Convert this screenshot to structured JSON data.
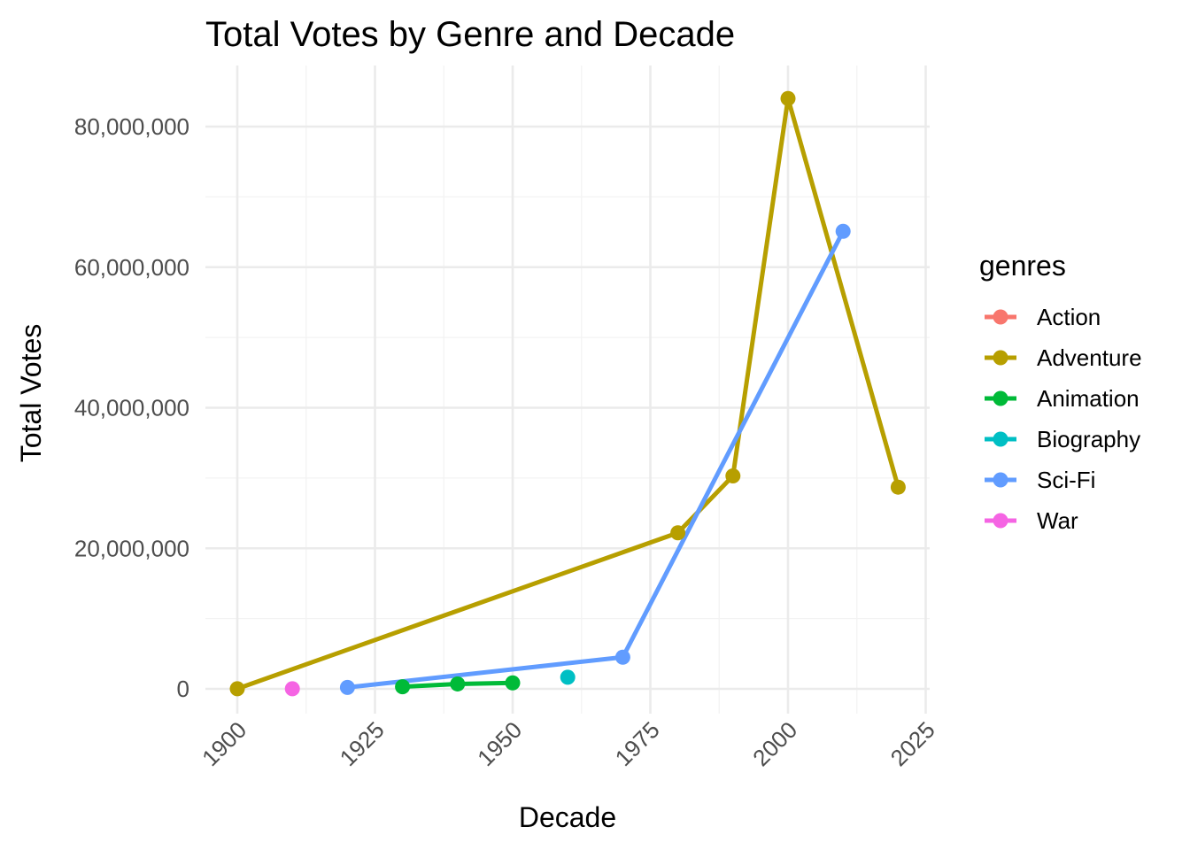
{
  "chart_data": {
    "type": "line",
    "title": "Total Votes by Genre and Decade",
    "xlabel": "Decade",
    "ylabel": "Total Votes",
    "xlim": [
      1900,
      2025
    ],
    "ylim": [
      0,
      85000000
    ],
    "x_ticks": [
      1900,
      1925,
      1950,
      1975,
      2000,
      2025
    ],
    "x_tick_labels": [
      "1900",
      "1925",
      "1950",
      "1975",
      "2000",
      "2025"
    ],
    "y_ticks": [
      0,
      20000000,
      40000000,
      60000000,
      80000000
    ],
    "y_tick_labels": [
      "0",
      "20,000,000",
      "40,000,000",
      "60,000,000",
      "80,000,000"
    ],
    "grid": true,
    "legend": {
      "title": "genres",
      "placement": "right"
    },
    "series": [
      {
        "name": "Action",
        "color": "#F8766D",
        "points": []
      },
      {
        "name": "Adventure",
        "color": "#B79F00",
        "points": [
          [
            1900,
            20000
          ],
          [
            1980,
            22200000
          ],
          [
            1990,
            30300000
          ],
          [
            2000,
            84000000
          ],
          [
            2020,
            28700000
          ]
        ]
      },
      {
        "name": "Animation",
        "color": "#00BA38",
        "points": [
          [
            1930,
            300000
          ],
          [
            1940,
            700000
          ],
          [
            1950,
            850000
          ]
        ]
      },
      {
        "name": "Biography",
        "color": "#00BFC4",
        "points": [
          [
            1960,
            1650000
          ]
        ]
      },
      {
        "name": "Sci-Fi",
        "color": "#619CFF",
        "points": [
          [
            1920,
            200000
          ],
          [
            1970,
            4500000
          ],
          [
            2010,
            65100000
          ]
        ]
      },
      {
        "name": "War",
        "color": "#F564E3",
        "points": [
          [
            1910,
            20000
          ]
        ]
      }
    ]
  }
}
